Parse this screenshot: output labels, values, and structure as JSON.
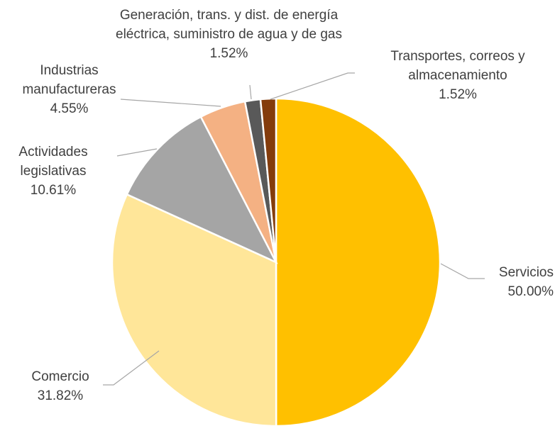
{
  "chart_data": {
    "type": "pie",
    "categories": [
      "Servicios",
      "Comercio",
      "Actividades legislativas",
      "Industrias manufactureras",
      "Generación, trans. y dist. de energía eléctrica, suministro de agua y de gas",
      "Transportes, correos y almacenamiento"
    ],
    "values": [
      50.0,
      31.82,
      10.61,
      4.55,
      1.52,
      1.52
    ],
    "value_labels": [
      "50.00%",
      "31.82%",
      "10.61%",
      "4.55%",
      "1.52%",
      "1.52%"
    ],
    "colors": [
      "#FFC000",
      "#FFE699",
      "#A5A5A5",
      "#F4B183",
      "#595959",
      "#843C0C"
    ]
  }
}
